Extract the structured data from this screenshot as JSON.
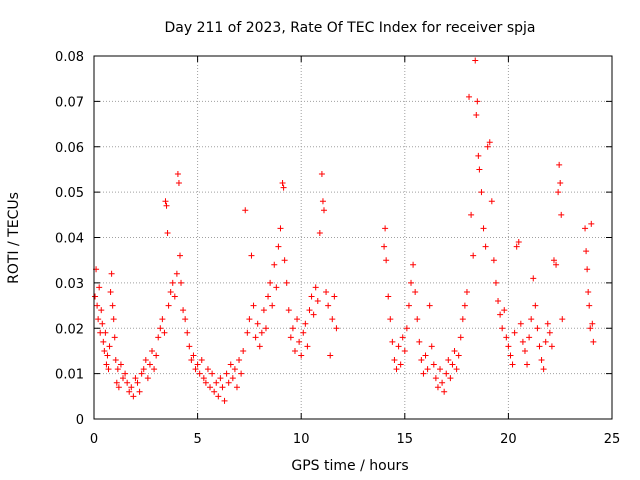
{
  "chart_data": {
    "type": "scatter",
    "title": "Day 211 of 2023, Rate Of TEC Index for receiver spja",
    "xlabel": "GPS time / hours",
    "ylabel": "ROTI / TECUs",
    "xlim": [
      0,
      25
    ],
    "ylim": [
      0,
      0.08
    ],
    "x_ticks": [
      0,
      5,
      10,
      15,
      20,
      25
    ],
    "x_tick_labels": [
      "0",
      "5",
      "10",
      "15",
      "20",
      "25"
    ],
    "y_ticks": [
      0,
      0.01,
      0.02,
      0.03,
      0.04,
      0.05,
      0.06,
      0.07,
      0.08
    ],
    "y_tick_labels": [
      "0",
      "0.01",
      "0.02",
      "0.03",
      "0.04",
      "0.05",
      "0.06",
      "0.07",
      "0.08"
    ],
    "grid": true,
    "marker": "+",
    "color": "#ff0000",
    "series": [
      {
        "values": [
          [
            0.05,
            0.027
          ],
          [
            0.1,
            0.033
          ],
          [
            0.15,
            0.025
          ],
          [
            0.2,
            0.022
          ],
          [
            0.25,
            0.029
          ],
          [
            0.3,
            0.019
          ],
          [
            0.35,
            0.024
          ],
          [
            0.4,
            0.021
          ],
          [
            0.45,
            0.017
          ],
          [
            0.5,
            0.015
          ],
          [
            0.55,
            0.019
          ],
          [
            0.6,
            0.012
          ],
          [
            0.65,
            0.014
          ],
          [
            0.7,
            0.011
          ],
          [
            0.75,
            0.016
          ],
          [
            0.8,
            0.028
          ],
          [
            0.85,
            0.032
          ],
          [
            0.9,
            0.025
          ],
          [
            0.95,
            0.022
          ],
          [
            1.0,
            0.018
          ],
          [
            1.05,
            0.013
          ],
          [
            1.1,
            0.008
          ],
          [
            1.15,
            0.011
          ],
          [
            1.2,
            0.007
          ],
          [
            1.3,
            0.012
          ],
          [
            1.4,
            0.009
          ],
          [
            1.5,
            0.01
          ],
          [
            1.6,
            0.008
          ],
          [
            1.7,
            0.006
          ],
          [
            1.8,
            0.007
          ],
          [
            1.9,
            0.005
          ],
          [
            2.0,
            0.009
          ],
          [
            2.1,
            0.008
          ],
          [
            2.2,
            0.006
          ],
          [
            2.3,
            0.01
          ],
          [
            2.4,
            0.011
          ],
          [
            2.5,
            0.013
          ],
          [
            2.6,
            0.009
          ],
          [
            2.7,
            0.012
          ],
          [
            2.8,
            0.015
          ],
          [
            2.9,
            0.011
          ],
          [
            3.0,
            0.014
          ],
          [
            3.1,
            0.018
          ],
          [
            3.2,
            0.02
          ],
          [
            3.3,
            0.022
          ],
          [
            3.4,
            0.019
          ],
          [
            3.45,
            0.048
          ],
          [
            3.5,
            0.047
          ],
          [
            3.55,
            0.041
          ],
          [
            3.6,
            0.025
          ],
          [
            3.7,
            0.028
          ],
          [
            3.8,
            0.03
          ],
          [
            3.9,
            0.027
          ],
          [
            4.0,
            0.032
          ],
          [
            4.05,
            0.054
          ],
          [
            4.1,
            0.052
          ],
          [
            4.15,
            0.036
          ],
          [
            4.2,
            0.03
          ],
          [
            4.3,
            0.024
          ],
          [
            4.4,
            0.022
          ],
          [
            4.5,
            0.019
          ],
          [
            4.6,
            0.016
          ],
          [
            4.7,
            0.013
          ],
          [
            4.8,
            0.014
          ],
          [
            4.9,
            0.011
          ],
          [
            5.0,
            0.012
          ],
          [
            5.1,
            0.01
          ],
          [
            5.2,
            0.013
          ],
          [
            5.3,
            0.009
          ],
          [
            5.4,
            0.008
          ],
          [
            5.5,
            0.011
          ],
          [
            5.6,
            0.007
          ],
          [
            5.7,
            0.01
          ],
          [
            5.8,
            0.006
          ],
          [
            5.9,
            0.008
          ],
          [
            6.0,
            0.005
          ],
          [
            6.1,
            0.009
          ],
          [
            6.2,
            0.007
          ],
          [
            6.3,
            0.004
          ],
          [
            6.4,
            0.01
          ],
          [
            6.5,
            0.008
          ],
          [
            6.6,
            0.012
          ],
          [
            6.7,
            0.009
          ],
          [
            6.8,
            0.011
          ],
          [
            6.9,
            0.007
          ],
          [
            7.0,
            0.013
          ],
          [
            7.1,
            0.01
          ],
          [
            7.2,
            0.015
          ],
          [
            7.3,
            0.046
          ],
          [
            7.4,
            0.019
          ],
          [
            7.5,
            0.022
          ],
          [
            7.6,
            0.036
          ],
          [
            7.7,
            0.025
          ],
          [
            7.8,
            0.018
          ],
          [
            7.9,
            0.021
          ],
          [
            8.0,
            0.016
          ],
          [
            8.1,
            0.019
          ],
          [
            8.2,
            0.024
          ],
          [
            8.3,
            0.02
          ],
          [
            8.4,
            0.027
          ],
          [
            8.5,
            0.03
          ],
          [
            8.6,
            0.025
          ],
          [
            8.7,
            0.034
          ],
          [
            8.8,
            0.029
          ],
          [
            8.9,
            0.038
          ],
          [
            9.0,
            0.042
          ],
          [
            9.1,
            0.052
          ],
          [
            9.15,
            0.051
          ],
          [
            9.2,
            0.035
          ],
          [
            9.3,
            0.03
          ],
          [
            9.4,
            0.024
          ],
          [
            9.5,
            0.018
          ],
          [
            9.6,
            0.02
          ],
          [
            9.7,
            0.015
          ],
          [
            9.8,
            0.022
          ],
          [
            9.9,
            0.017
          ],
          [
            10.0,
            0.014
          ],
          [
            10.1,
            0.019
          ],
          [
            10.2,
            0.021
          ],
          [
            10.3,
            0.016
          ],
          [
            10.4,
            0.024
          ],
          [
            10.5,
            0.027
          ],
          [
            10.6,
            0.023
          ],
          [
            10.7,
            0.029
          ],
          [
            10.8,
            0.026
          ],
          [
            10.9,
            0.041
          ],
          [
            11.0,
            0.054
          ],
          [
            11.05,
            0.048
          ],
          [
            11.1,
            0.046
          ],
          [
            11.2,
            0.028
          ],
          [
            11.3,
            0.025
          ],
          [
            11.4,
            0.014
          ],
          [
            11.5,
            0.022
          ],
          [
            11.6,
            0.027
          ],
          [
            11.7,
            0.02
          ],
          [
            14.0,
            0.038
          ],
          [
            14.05,
            0.042
          ],
          [
            14.1,
            0.035
          ],
          [
            14.2,
            0.027
          ],
          [
            14.3,
            0.022
          ],
          [
            14.4,
            0.017
          ],
          [
            14.5,
            0.013
          ],
          [
            14.6,
            0.011
          ],
          [
            14.7,
            0.016
          ],
          [
            14.8,
            0.012
          ],
          [
            14.9,
            0.018
          ],
          [
            15.0,
            0.015
          ],
          [
            15.1,
            0.02
          ],
          [
            15.2,
            0.025
          ],
          [
            15.3,
            0.03
          ],
          [
            15.4,
            0.034
          ],
          [
            15.5,
            0.028
          ],
          [
            15.6,
            0.022
          ],
          [
            15.7,
            0.017
          ],
          [
            15.8,
            0.013
          ],
          [
            15.9,
            0.01
          ],
          [
            16.0,
            0.014
          ],
          [
            16.1,
            0.011
          ],
          [
            16.2,
            0.025
          ],
          [
            16.3,
            0.016
          ],
          [
            16.4,
            0.012
          ],
          [
            16.5,
            0.009
          ],
          [
            16.6,
            0.007
          ],
          [
            16.7,
            0.011
          ],
          [
            16.8,
            0.008
          ],
          [
            16.9,
            0.006
          ],
          [
            17.0,
            0.01
          ],
          [
            17.1,
            0.013
          ],
          [
            17.2,
            0.009
          ],
          [
            17.3,
            0.012
          ],
          [
            17.4,
            0.015
          ],
          [
            17.5,
            0.011
          ],
          [
            17.6,
            0.014
          ],
          [
            17.7,
            0.018
          ],
          [
            17.8,
            0.022
          ],
          [
            17.9,
            0.025
          ],
          [
            18.0,
            0.028
          ],
          [
            18.1,
            0.071
          ],
          [
            18.2,
            0.045
          ],
          [
            18.3,
            0.036
          ],
          [
            18.4,
            0.079
          ],
          [
            18.45,
            0.067
          ],
          [
            18.5,
            0.07
          ],
          [
            18.55,
            0.058
          ],
          [
            18.6,
            0.055
          ],
          [
            18.7,
            0.05
          ],
          [
            18.8,
            0.042
          ],
          [
            18.9,
            0.038
          ],
          [
            19.0,
            0.06
          ],
          [
            19.1,
            0.061
          ],
          [
            19.2,
            0.048
          ],
          [
            19.3,
            0.035
          ],
          [
            19.4,
            0.03
          ],
          [
            19.5,
            0.026
          ],
          [
            19.6,
            0.023
          ],
          [
            19.7,
            0.02
          ],
          [
            19.8,
            0.024
          ],
          [
            19.9,
            0.018
          ],
          [
            20.0,
            0.016
          ],
          [
            20.1,
            0.014
          ],
          [
            20.2,
            0.012
          ],
          [
            20.3,
            0.019
          ],
          [
            20.4,
            0.038
          ],
          [
            20.5,
            0.039
          ],
          [
            20.6,
            0.021
          ],
          [
            20.7,
            0.017
          ],
          [
            20.8,
            0.015
          ],
          [
            20.9,
            0.012
          ],
          [
            21.0,
            0.018
          ],
          [
            21.1,
            0.022
          ],
          [
            21.2,
            0.031
          ],
          [
            21.3,
            0.025
          ],
          [
            21.4,
            0.02
          ],
          [
            21.5,
            0.016
          ],
          [
            21.6,
            0.013
          ],
          [
            21.7,
            0.011
          ],
          [
            21.8,
            0.017
          ],
          [
            21.9,
            0.021
          ],
          [
            22.0,
            0.019
          ],
          [
            22.1,
            0.016
          ],
          [
            22.2,
            0.035
          ],
          [
            22.3,
            0.034
          ],
          [
            22.4,
            0.05
          ],
          [
            22.45,
            0.056
          ],
          [
            22.5,
            0.052
          ],
          [
            22.55,
            0.045
          ],
          [
            22.6,
            0.022
          ],
          [
            23.7,
            0.042
          ],
          [
            23.75,
            0.037
          ],
          [
            23.8,
            0.033
          ],
          [
            23.85,
            0.028
          ],
          [
            23.9,
            0.025
          ],
          [
            23.95,
            0.02
          ],
          [
            24.0,
            0.043
          ],
          [
            24.05,
            0.021
          ],
          [
            24.1,
            0.017
          ]
        ]
      }
    ]
  }
}
